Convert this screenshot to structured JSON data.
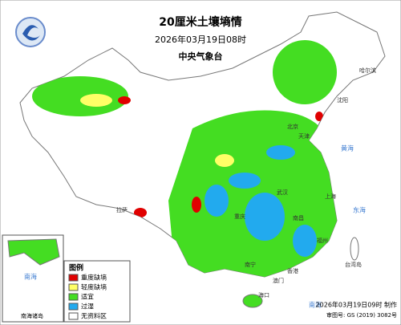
{
  "header": {
    "title": "20厘米土壤墒情",
    "subtitle": "2026年03月19日08时",
    "source": "中央气象台"
  },
  "legend": {
    "title": "图例",
    "items": [
      {
        "name": "重度缺墒",
        "color": "#e00000"
      },
      {
        "name": "轻度缺墒",
        "color": "#ffff66"
      },
      {
        "name": "适宜",
        "color": "#44dd22"
      },
      {
        "name": "过湿",
        "color": "#22aaee"
      },
      {
        "name": "无资料区",
        "color": "#ffffff"
      }
    ]
  },
  "places": [
    "北京",
    "天津",
    "上海",
    "拉萨",
    "重庆",
    "武汉",
    "南昌",
    "福州",
    "台湾岛",
    "香港",
    "澳门",
    "南宁",
    "海口",
    "哈尔滨",
    "沈阳",
    "黄海",
    "东海",
    "南海"
  ],
  "inset": {
    "label": "南海诸岛",
    "sea": "南海"
  },
  "footer": {
    "made": "2026年03月19日09时 制作",
    "approval": "审图号: GS (2019) 3082号"
  }
}
